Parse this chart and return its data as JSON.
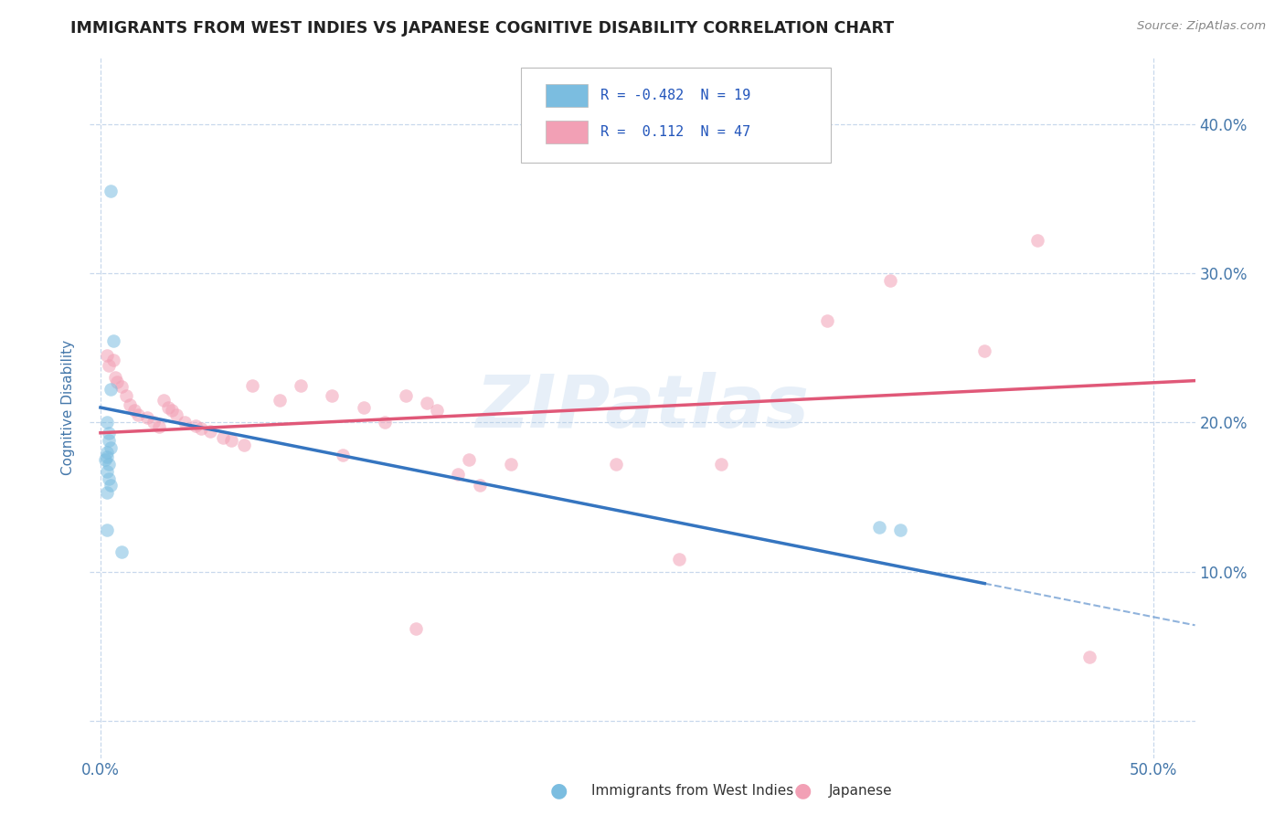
{
  "title": "IMMIGRANTS FROM WEST INDIES VS JAPANESE COGNITIVE DISABILITY CORRELATION CHART",
  "source": "Source: ZipAtlas.com",
  "ylabel": "Cognitive Disability",
  "xlim": [
    -0.005,
    0.52
  ],
  "ylim": [
    -0.025,
    0.445
  ],
  "yticks": [
    0.0,
    0.1,
    0.2,
    0.3,
    0.4
  ],
  "ytick_labels_right": [
    "",
    "10.0%",
    "20.0%",
    "30.0%",
    "40.0%"
  ],
  "xticks": [
    0.0,
    0.5
  ],
  "xtick_labels": [
    "0.0%",
    "50.0%"
  ],
  "legend_entries": [
    {
      "label": "R = -0.482  N = 19",
      "color": "#aec6e8"
    },
    {
      "label": "R =  0.112  N = 47",
      "color": "#f4b8c1"
    }
  ],
  "legend_labels": [
    "Immigrants from West Indies",
    "Japanese"
  ],
  "blue_scatter": [
    [
      0.005,
      0.355
    ],
    [
      0.006,
      0.255
    ],
    [
      0.005,
      0.222
    ],
    [
      0.003,
      0.2
    ],
    [
      0.004,
      0.193
    ],
    [
      0.004,
      0.188
    ],
    [
      0.005,
      0.183
    ],
    [
      0.003,
      0.18
    ],
    [
      0.003,
      0.177
    ],
    [
      0.002,
      0.175
    ],
    [
      0.004,
      0.172
    ],
    [
      0.003,
      0.167
    ],
    [
      0.004,
      0.162
    ],
    [
      0.005,
      0.158
    ],
    [
      0.003,
      0.153
    ],
    [
      0.003,
      0.128
    ],
    [
      0.01,
      0.113
    ],
    [
      0.37,
      0.13
    ],
    [
      0.38,
      0.128
    ]
  ],
  "pink_scatter": [
    [
      0.003,
      0.245
    ],
    [
      0.006,
      0.242
    ],
    [
      0.004,
      0.238
    ],
    [
      0.007,
      0.23
    ],
    [
      0.008,
      0.227
    ],
    [
      0.01,
      0.224
    ],
    [
      0.012,
      0.218
    ],
    [
      0.014,
      0.212
    ],
    [
      0.016,
      0.208
    ],
    [
      0.018,
      0.205
    ],
    [
      0.022,
      0.203
    ],
    [
      0.025,
      0.2
    ],
    [
      0.028,
      0.197
    ],
    [
      0.03,
      0.215
    ],
    [
      0.032,
      0.21
    ],
    [
      0.034,
      0.208
    ],
    [
      0.036,
      0.205
    ],
    [
      0.04,
      0.2
    ],
    [
      0.045,
      0.198
    ],
    [
      0.048,
      0.196
    ],
    [
      0.052,
      0.194
    ],
    [
      0.058,
      0.19
    ],
    [
      0.062,
      0.188
    ],
    [
      0.068,
      0.185
    ],
    [
      0.072,
      0.225
    ],
    [
      0.085,
      0.215
    ],
    [
      0.095,
      0.225
    ],
    [
      0.11,
      0.218
    ],
    [
      0.125,
      0.21
    ],
    [
      0.135,
      0.2
    ],
    [
      0.145,
      0.218
    ],
    [
      0.155,
      0.213
    ],
    [
      0.16,
      0.208
    ],
    [
      0.17,
      0.165
    ],
    [
      0.18,
      0.158
    ],
    [
      0.195,
      0.172
    ],
    [
      0.245,
      0.172
    ],
    [
      0.275,
      0.108
    ],
    [
      0.295,
      0.172
    ],
    [
      0.345,
      0.268
    ],
    [
      0.375,
      0.295
    ],
    [
      0.42,
      0.248
    ],
    [
      0.445,
      0.322
    ],
    [
      0.47,
      0.043
    ],
    [
      0.15,
      0.062
    ],
    [
      0.175,
      0.175
    ],
    [
      0.115,
      0.178
    ]
  ],
  "blue_line": {
    "x": [
      0.0,
      0.42
    ],
    "y": [
      0.21,
      0.092
    ]
  },
  "blue_dash": {
    "x": [
      0.42,
      0.52
    ],
    "y": [
      0.092,
      0.064
    ]
  },
  "pink_line": {
    "x": [
      0.0,
      0.52
    ],
    "y": [
      0.193,
      0.228
    ]
  },
  "scatter_size": 110,
  "scatter_alpha": 0.55,
  "blue_color": "#7bbde0",
  "pink_color": "#f2a0b5",
  "blue_line_color": "#3575c0",
  "pink_line_color": "#e05878",
  "watermark": "ZIPatlas",
  "bg_color": "#ffffff",
  "grid_color": "#c8d8ec",
  "title_color": "#222222",
  "axis_label_color": "#4477aa",
  "tick_label_color": "#4477aa"
}
